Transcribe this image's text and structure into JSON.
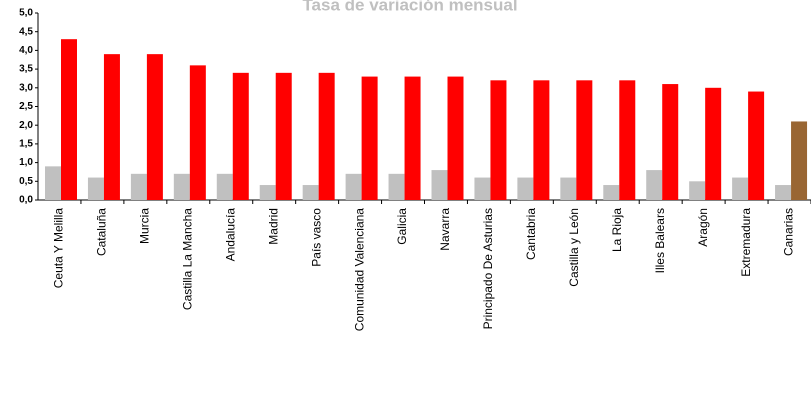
{
  "chart_data": {
    "type": "bar",
    "title": "Tasa de variación mensual",
    "categories": [
      "Ceuta Y Melilla",
      "Cataluña",
      "Murcia",
      "Castilla La Mancha",
      "Andalucía",
      "Madrid",
      "País vasco",
      "Comunidad Valenciana",
      "Galicia",
      "Navarra",
      "Principado De Asturias",
      "Cantabria",
      "Castilla y León",
      "La Rioja",
      "Illes Balears",
      "Aragón",
      "Extremadura",
      "Canarias"
    ],
    "series": [
      {
        "color": "#c0c0c0",
        "values": [
          0.9,
          0.6,
          0.7,
          0.7,
          0.7,
          0.4,
          0.4,
          0.7,
          0.7,
          0.8,
          0.6,
          0.6,
          0.6,
          0.4,
          0.8,
          0.5,
          0.6,
          0.4
        ]
      },
      {
        "color": "#ff0000",
        "colors": [
          "#ff0000",
          "#ff0000",
          "#ff0000",
          "#ff0000",
          "#ff0000",
          "#ff0000",
          "#ff0000",
          "#ff0000",
          "#ff0000",
          "#ff0000",
          "#ff0000",
          "#ff0000",
          "#ff0000",
          "#ff0000",
          "#ff0000",
          "#ff0000",
          "#ff0000",
          "#996633"
        ],
        "values": [
          4.3,
          3.9,
          3.9,
          3.6,
          3.4,
          3.4,
          3.4,
          3.3,
          3.3,
          3.3,
          3.2,
          3.2,
          3.2,
          3.2,
          3.1,
          3.0,
          2.9,
          2.1
        ]
      }
    ],
    "ylim": [
      0,
      5
    ],
    "yticks": [
      {
        "value": 0,
        "label": "0,0"
      },
      {
        "value": 0.5,
        "label": "0,5"
      },
      {
        "value": 1,
        "label": "1,0"
      },
      {
        "value": 1.5,
        "label": "1,5"
      },
      {
        "value": 2,
        "label": "2,0"
      },
      {
        "value": 2.5,
        "label": "2,5"
      },
      {
        "value": 3,
        "label": "3,0"
      },
      {
        "value": 3.5,
        "label": "3,5"
      },
      {
        "value": 4,
        "label": "4,0"
      },
      {
        "value": 4.5,
        "label": "4,5"
      },
      {
        "value": 5,
        "label": "5,0"
      }
    ],
    "grid": false
  }
}
